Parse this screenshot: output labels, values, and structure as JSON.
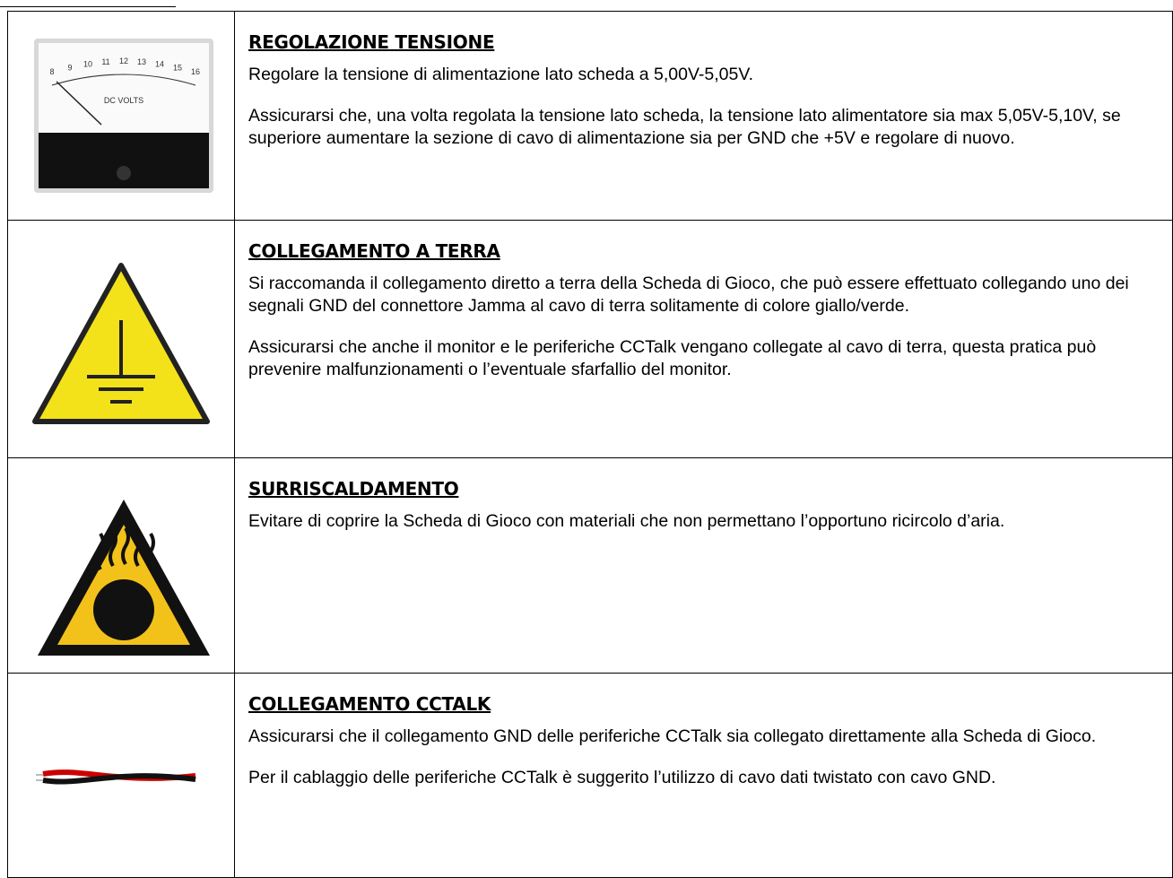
{
  "gauge": {
    "label": "DC VOLTS",
    "scale": [
      "8",
      "9",
      "10",
      "11",
      "12",
      "13",
      "14",
      "15",
      "16"
    ]
  },
  "rows": [
    {
      "title": "REGOLAZIONE TENSIONE",
      "paragraphs": [
        "Regolare la tensione di alimentazione lato scheda a 5,00V-5,05V.",
        "Assicurarsi che, una volta regolata la tensione lato scheda, la tensione lato alimentatore sia max 5,05V-5,10V, se superiore aumentare la sezione di cavo di alimentazione sia per GND che +5V e regolare di nuovo."
      ]
    },
    {
      "title": "COLLEGAMENTO A TERRA",
      "paragraphs": [
        "Si raccomanda il collegamento diretto a terra della Scheda di Gioco, che può essere effettuato collegando uno dei segnali GND del connettore Jamma al cavo di terra solitamente di colore giallo/verde.",
        "Assicurarsi che anche il monitor e le periferiche CCTalk vengano collegate al cavo di terra, questa pratica può prevenire malfunzionamenti o l’eventuale sfarfallio del monitor."
      ]
    },
    {
      "title": "SURRISCALDAMENTO",
      "paragraphs": [
        "Evitare di coprire la Scheda di Gioco con materiali che non permettano l’opportuno ricircolo d’aria."
      ]
    },
    {
      "title": "COLLEGAMENTO CCTALK",
      "paragraphs": [
        "Assicurarsi che il collegamento GND delle periferiche CCTalk sia collegato direttamente alla Scheda di Gioco.",
        "Per il cablaggio delle periferiche CCTalk è suggerito l’utilizzo di cavo dati twistato con cavo GND."
      ]
    }
  ]
}
